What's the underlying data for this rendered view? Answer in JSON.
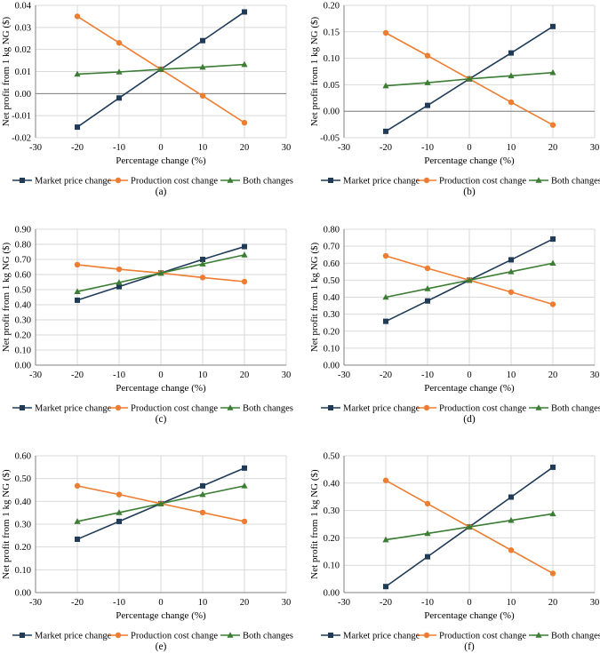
{
  "colors": {
    "market": "#1f3b57",
    "production": "#ed7d31",
    "both": "#3a7d33",
    "grid": "#d9d9d9",
    "axis": "#808080"
  },
  "legend_labels": [
    "Market price change",
    "Production cost change",
    "Both changes"
  ],
  "chart_data": [
    {
      "type": "line",
      "caption": "(a)",
      "xlabel": "Percentage change (%)",
      "ylabel": "Net profit from 1 kg NG ($)",
      "xlim": [
        -30,
        30
      ],
      "xticks": [
        -30,
        -20,
        -10,
        0,
        10,
        20,
        30
      ],
      "ylim": [
        -0.02,
        0.04
      ],
      "yticks": [
        -0.02,
        -0.01,
        0,
        0.01,
        0.02,
        0.03,
        0.04
      ],
      "ytick_labels": [
        "-0.02",
        "-0.01",
        "0.00",
        "0.01",
        "0.02",
        "0.03",
        "0.04"
      ],
      "x": [
        -20,
        -10,
        0,
        10,
        20
      ],
      "series": [
        {
          "name": "Market price change",
          "values": [
            -0.0152,
            -0.002,
            0.011,
            0.024,
            0.037
          ]
        },
        {
          "name": "Production cost change",
          "values": [
            0.035,
            0.023,
            0.011,
            -0.001,
            -0.0132
          ]
        },
        {
          "name": "Both changes",
          "values": [
            0.0088,
            0.0098,
            0.011,
            0.012,
            0.0132
          ]
        }
      ]
    },
    {
      "type": "line",
      "caption": "(b)",
      "xlabel": "Percentage change (%)",
      "ylabel": "Net profit from 1 kg NG ($)",
      "xlim": [
        -30,
        30
      ],
      "xticks": [
        -30,
        -20,
        -10,
        0,
        10,
        20,
        30
      ],
      "ylim": [
        -0.05,
        0.2
      ],
      "yticks": [
        -0.05,
        0,
        0.05,
        0.1,
        0.15,
        0.2
      ],
      "ytick_labels": [
        "-0.05",
        "0.00",
        "0.05",
        "0.10",
        "0.15",
        "0.20"
      ],
      "x": [
        -20,
        -10,
        0,
        10,
        20
      ],
      "series": [
        {
          "name": "Market price change",
          "values": [
            -0.038,
            0.011,
            0.061,
            0.11,
            0.16
          ]
        },
        {
          "name": "Production cost change",
          "values": [
            0.148,
            0.105,
            0.061,
            0.017,
            -0.026
          ]
        },
        {
          "name": "Both changes",
          "values": [
            0.048,
            0.054,
            0.061,
            0.067,
            0.073
          ]
        }
      ]
    },
    {
      "type": "line",
      "caption": "(c)",
      "xlabel": "Percentage change (%)",
      "ylabel": "Net profit from 1 kg NG ($)",
      "xlim": [
        -30,
        30
      ],
      "xticks": [
        -30,
        -20,
        -10,
        0,
        10,
        20,
        30
      ],
      "ylim": [
        0,
        0.9
      ],
      "yticks": [
        0,
        0.1,
        0.2,
        0.3,
        0.4,
        0.5,
        0.6,
        0.7,
        0.8,
        0.9
      ],
      "ytick_labels": [
        "0.00",
        "0.10",
        "0.20",
        "0.30",
        "0.40",
        "0.50",
        "0.60",
        "0.70",
        "0.80",
        "0.90"
      ],
      "x": [
        -20,
        -10,
        0,
        10,
        20
      ],
      "series": [
        {
          "name": "Market price change",
          "values": [
            0.43,
            0.52,
            0.61,
            0.7,
            0.785
          ]
        },
        {
          "name": "Production cost change",
          "values": [
            0.665,
            0.635,
            0.61,
            0.58,
            0.553
          ]
        },
        {
          "name": "Both changes",
          "values": [
            0.487,
            0.547,
            0.61,
            0.67,
            0.73
          ]
        }
      ]
    },
    {
      "type": "line",
      "caption": "(d)",
      "xlabel": "Percentage change (%)",
      "ylabel": "Net profit from 1 kg NG ($)",
      "xlim": [
        -30,
        30
      ],
      "xticks": [
        -30,
        -20,
        -10,
        0,
        10,
        20,
        30
      ],
      "ylim": [
        0,
        0.8
      ],
      "yticks": [
        0,
        0.1,
        0.2,
        0.3,
        0.4,
        0.5,
        0.6,
        0.7,
        0.8
      ],
      "ytick_labels": [
        "0.00",
        "0.10",
        "0.20",
        "0.30",
        "0.40",
        "0.50",
        "0.60",
        "0.70",
        "0.80"
      ],
      "x": [
        -20,
        -10,
        0,
        10,
        20
      ],
      "series": [
        {
          "name": "Market price change",
          "values": [
            0.258,
            0.378,
            0.5,
            0.62,
            0.742
          ]
        },
        {
          "name": "Production cost change",
          "values": [
            0.643,
            0.57,
            0.5,
            0.43,
            0.358
          ]
        },
        {
          "name": "Both changes",
          "values": [
            0.4,
            0.45,
            0.5,
            0.55,
            0.6
          ]
        }
      ]
    },
    {
      "type": "line",
      "caption": "(e)",
      "xlabel": "Percentage change (%)",
      "ylabel": "Net profit from 1 kg NG ($)",
      "xlim": [
        -30,
        30
      ],
      "xticks": [
        -30,
        -20,
        -10,
        0,
        10,
        20,
        30
      ],
      "ylim": [
        0,
        0.6
      ],
      "yticks": [
        0,
        0.1,
        0.2,
        0.3,
        0.4,
        0.5,
        0.6
      ],
      "ytick_labels": [
        "0.00",
        "0.10",
        "0.20",
        "0.30",
        "0.40",
        "0.50",
        "0.60"
      ],
      "x": [
        -20,
        -10,
        0,
        10,
        20
      ],
      "series": [
        {
          "name": "Market price change",
          "values": [
            0.234,
            0.312,
            0.39,
            0.468,
            0.546
          ]
        },
        {
          "name": "Production cost change",
          "values": [
            0.468,
            0.43,
            0.39,
            0.351,
            0.312
          ]
        },
        {
          "name": "Both changes",
          "values": [
            0.312,
            0.351,
            0.39,
            0.43,
            0.468
          ]
        }
      ]
    },
    {
      "type": "line",
      "caption": "(f)",
      "xlabel": "Percentage change (%)",
      "ylabel": "Net profit from 1 kg NG ($)",
      "xlim": [
        -30,
        30
      ],
      "xticks": [
        -30,
        -20,
        -10,
        0,
        10,
        20,
        30
      ],
      "ylim": [
        0,
        0.5
      ],
      "yticks": [
        0,
        0.1,
        0.2,
        0.3,
        0.4,
        0.5
      ],
      "ytick_labels": [
        "0.00",
        "0.10",
        "0.20",
        "0.30",
        "0.40",
        "0.50"
      ],
      "x": [
        -20,
        -10,
        0,
        10,
        20
      ],
      "series": [
        {
          "name": "Market price change",
          "values": [
            0.022,
            0.131,
            0.24,
            0.349,
            0.458
          ]
        },
        {
          "name": "Production cost change",
          "values": [
            0.41,
            0.325,
            0.24,
            0.155,
            0.07
          ]
        },
        {
          "name": "Both changes",
          "values": [
            0.193,
            0.216,
            0.24,
            0.264,
            0.288
          ]
        }
      ]
    }
  ]
}
